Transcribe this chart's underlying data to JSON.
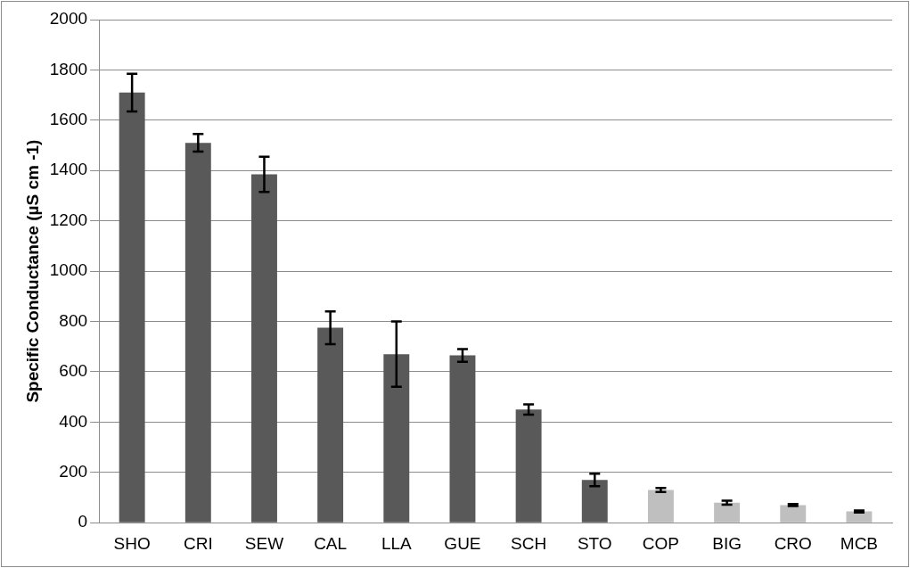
{
  "chart_data": {
    "type": "bar",
    "ylabel": "Specific Conductance (µS cm -1)",
    "categories": [
      "SHO",
      "CRI",
      "SEW",
      "CAL",
      "LLA",
      "GUE",
      "SCH",
      "STO",
      "COP",
      "BIG",
      "CRO",
      "MCB"
    ],
    "values": [
      1710,
      1510,
      1385,
      775,
      670,
      665,
      450,
      170,
      130,
      80,
      70,
      45
    ],
    "errors": [
      75,
      35,
      70,
      65,
      130,
      25,
      20,
      25,
      8,
      8,
      4,
      4
    ],
    "colors": [
      "#595959",
      "#595959",
      "#595959",
      "#595959",
      "#595959",
      "#595959",
      "#595959",
      "#595959",
      "#bfbfbf",
      "#bfbfbf",
      "#bfbfbf",
      "#bfbfbf"
    ],
    "ylim": [
      0,
      2000
    ],
    "yticks": [
      0,
      200,
      400,
      600,
      800,
      1000,
      1200,
      1400,
      1600,
      1800,
      2000
    ],
    "grid": "y",
    "legend": false
  }
}
